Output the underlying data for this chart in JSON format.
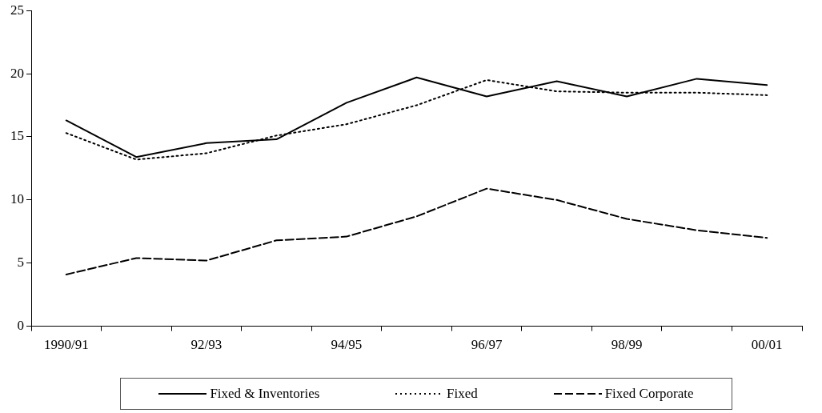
{
  "chart_data": {
    "type": "line",
    "categories": [
      "1990/91",
      null,
      "92/93",
      null,
      "94/95",
      null,
      "96/97",
      null,
      "98/99",
      null,
      "00/01"
    ],
    "series": [
      {
        "name": "Fixed & Inventories",
        "color": "#000000",
        "line_style": "solid",
        "values": [
          16.3,
          13.4,
          14.5,
          14.8,
          17.7,
          19.7,
          18.2,
          19.4,
          18.2,
          19.6,
          19.1
        ]
      },
      {
        "name": "Fixed",
        "color": "#000000",
        "line_style": "dotted",
        "values": [
          15.3,
          13.2,
          13.7,
          15.1,
          16.0,
          17.5,
          19.5,
          18.6,
          18.5,
          18.5,
          18.3
        ]
      },
      {
        "name": "Fixed Corporate",
        "color": "#000000",
        "line_style": "dashed",
        "values": [
          4.1,
          5.4,
          5.2,
          6.8,
          7.1,
          8.7,
          10.9,
          10.0,
          8.5,
          7.6,
          7.0
        ]
      }
    ],
    "ylim": [
      0,
      25
    ],
    "yticks": [
      0,
      5,
      10,
      15,
      20,
      25
    ],
    "grid": false,
    "legend": "bottom",
    "marker": "none"
  }
}
